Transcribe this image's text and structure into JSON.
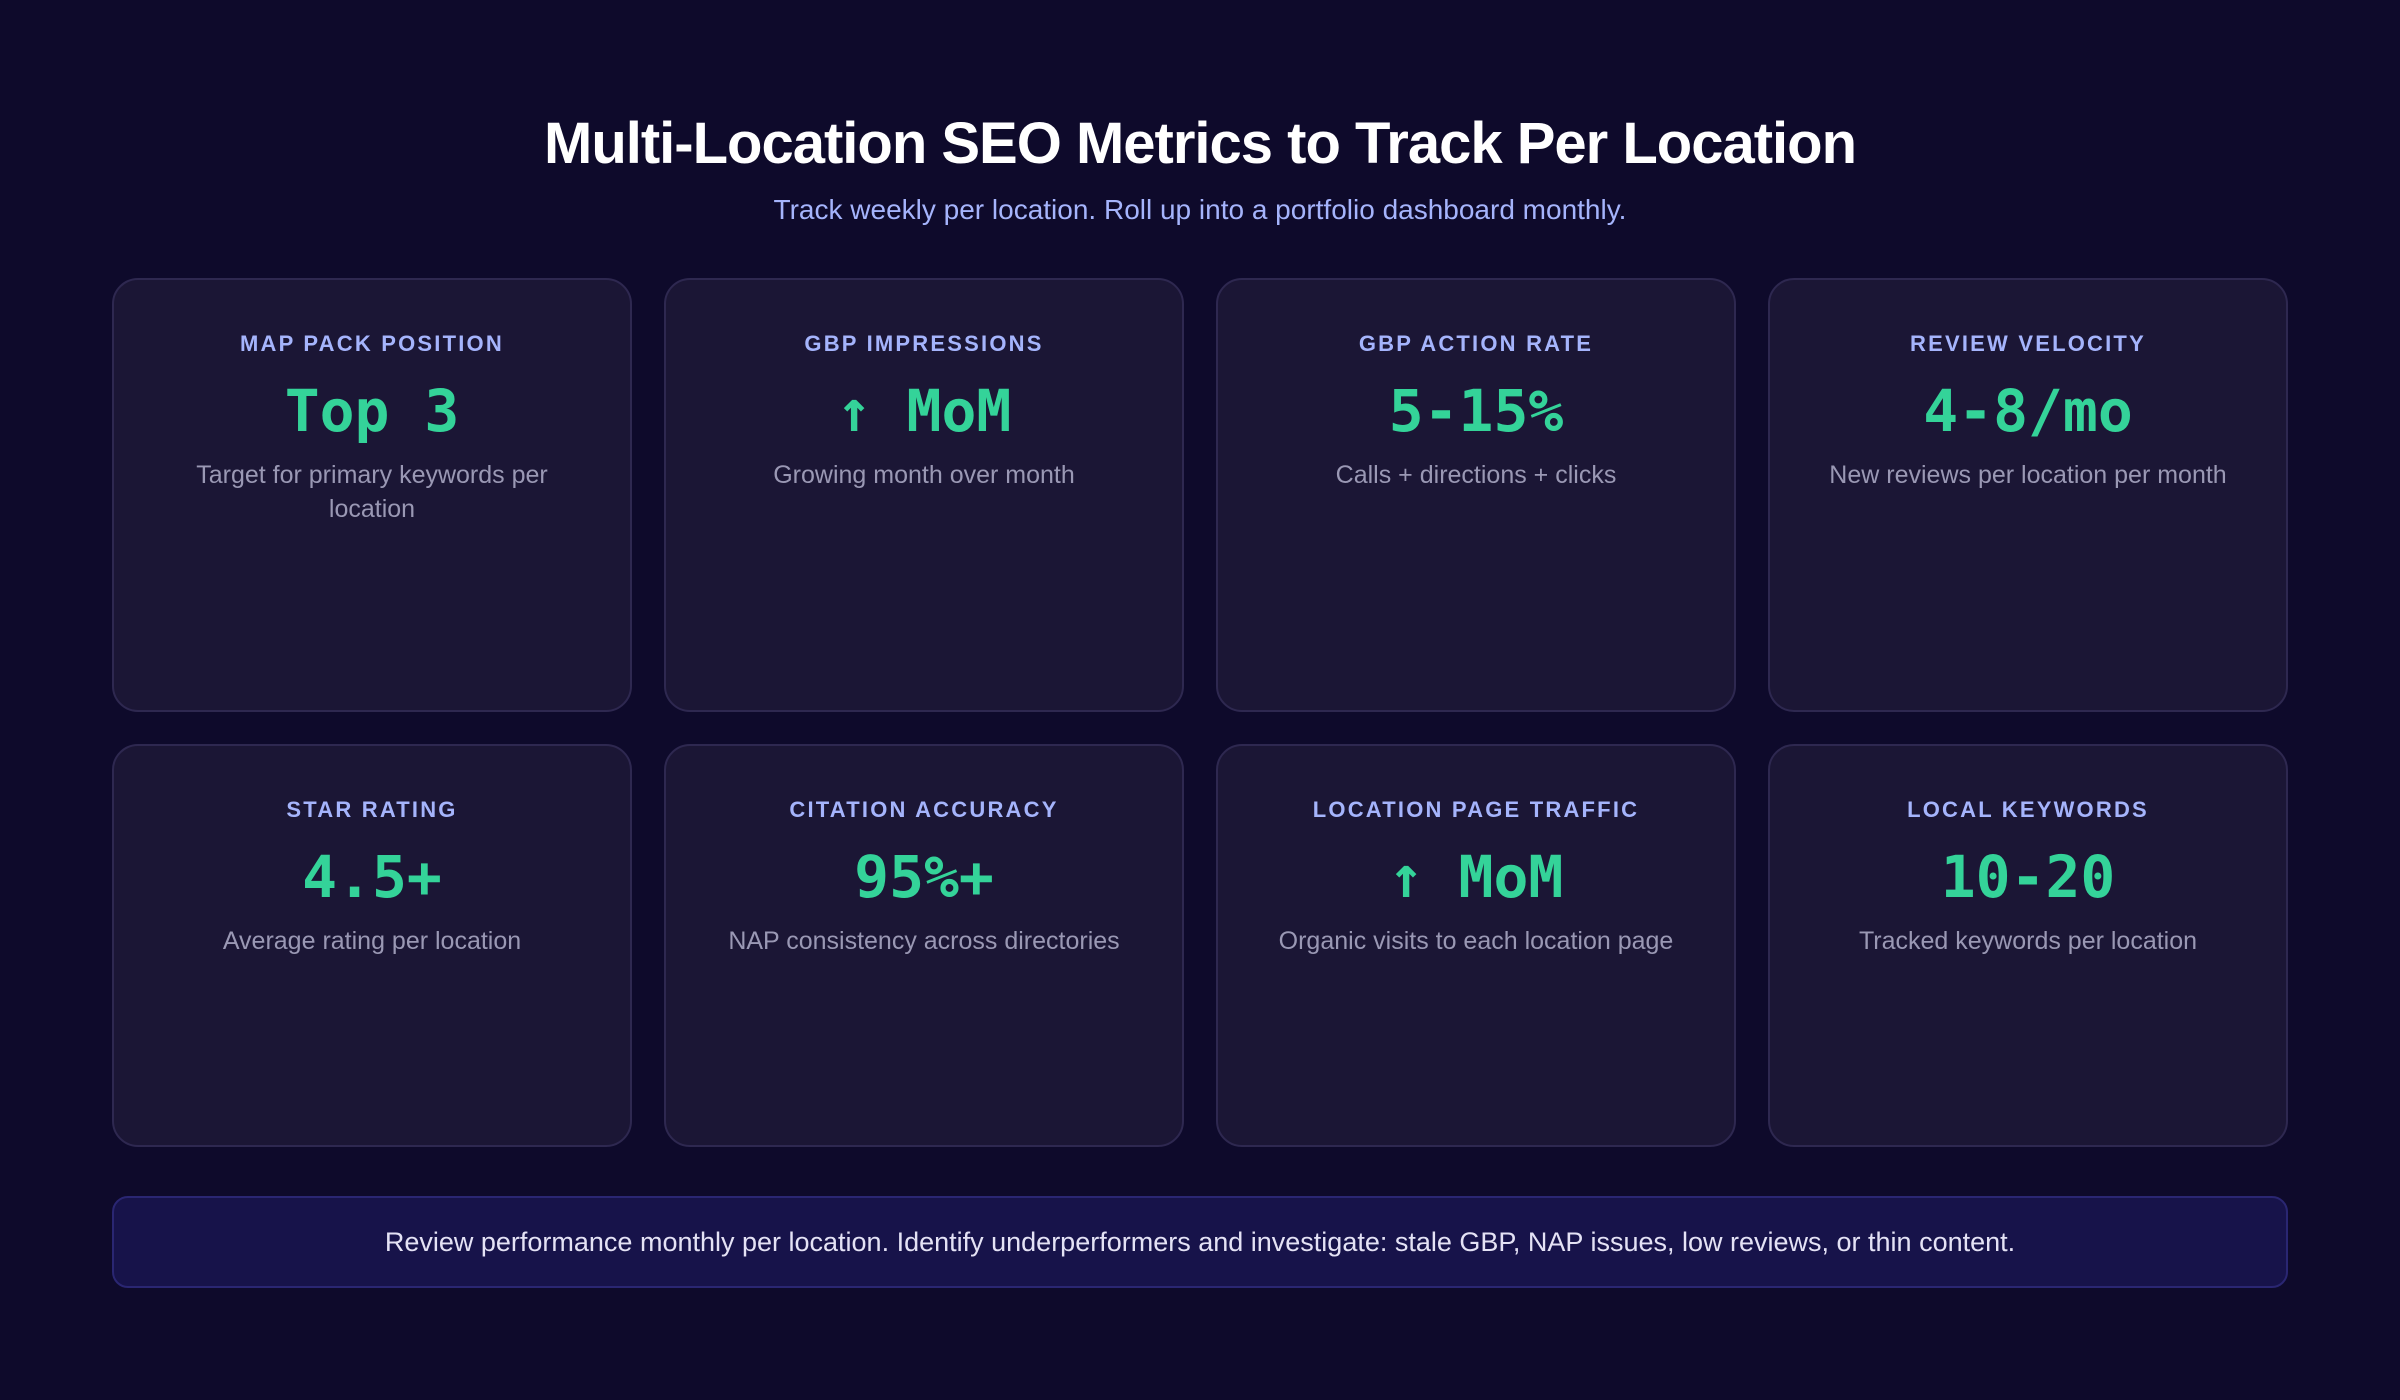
{
  "header": {
    "title": "Multi-Location SEO Metrics to Track Per Location",
    "subtitle": "Track weekly per location. Roll up into a portfolio dashboard monthly."
  },
  "metrics": [
    {
      "label": "MAP PACK POSITION",
      "value": "Top 3",
      "description": "Target for primary keywords per location"
    },
    {
      "label": "GBP IMPRESSIONS",
      "value": "↑ MoM",
      "description": "Growing month over month"
    },
    {
      "label": "GBP ACTION RATE",
      "value": "5-15%",
      "description": "Calls + directions + clicks"
    },
    {
      "label": "REVIEW VELOCITY",
      "value": "4-8/mo",
      "description": "New reviews per location per month"
    },
    {
      "label": "STAR RATING",
      "value": "4.5+",
      "description": "Average rating per location"
    },
    {
      "label": "CITATION ACCURACY",
      "value": "95%+",
      "description": "NAP consistency across directories"
    },
    {
      "label": "LOCATION PAGE TRAFFIC",
      "value": "↑ MoM",
      "description": "Organic visits to each location page"
    },
    {
      "label": "LOCAL KEYWORDS",
      "value": "10-20",
      "description": "Tracked keywords per location"
    }
  ],
  "footer": {
    "text": "Review performance monthly per location. Identify underperformers and investigate: stale GBP, NAP issues, low reviews, or thin content."
  },
  "colors": {
    "background": "#0e0a2b",
    "card": "#1b1635",
    "label": "#a5b4fc",
    "value": "#34d399",
    "description": "#9a98b4"
  }
}
